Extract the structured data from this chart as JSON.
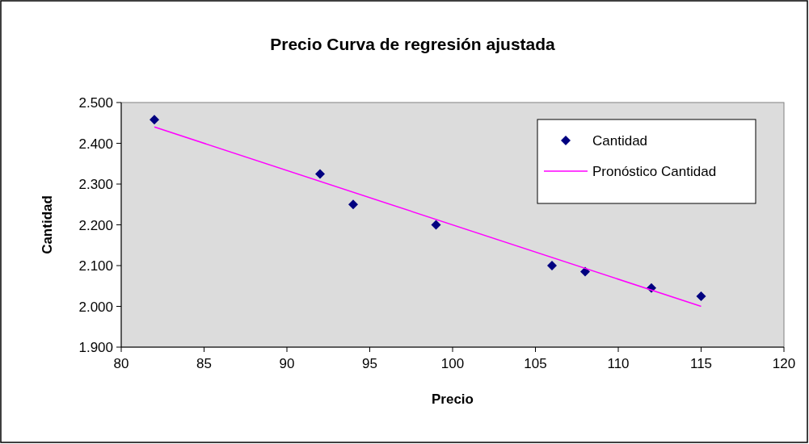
{
  "chart_data": {
    "type": "scatter",
    "title": "Precio Curva de regresión ajustada",
    "xlabel": "Precio",
    "ylabel": "Cantidad",
    "xlim": [
      80,
      120
    ],
    "xticks": [
      80,
      85,
      90,
      95,
      100,
      105,
      110,
      115,
      120
    ],
    "ylim": [
      1.9,
      2.5
    ],
    "yticks": [
      {
        "value": 1.9,
        "label": "1.900"
      },
      {
        "value": 2.0,
        "label": "2.000"
      },
      {
        "value": 2.1,
        "label": "2.100"
      },
      {
        "value": 2.2,
        "label": "2.200"
      },
      {
        "value": 2.3,
        "label": "2.300"
      },
      {
        "value": 2.4,
        "label": "2.400"
      },
      {
        "value": 2.5,
        "label": "2.500"
      }
    ],
    "grid": false,
    "legend": "top right",
    "series": [
      {
        "name": "Cantidad",
        "marker": "diamond",
        "color": "#000080",
        "x": [
          82,
          92,
          94,
          99,
          106,
          108,
          112,
          115
        ],
        "values": [
          2.458,
          2.325,
          2.25,
          2.2,
          2.1,
          2.085,
          2.045,
          2.025
        ]
      },
      {
        "name": "Pronóstico Cantidad",
        "type": "line",
        "marker": "none",
        "color": "#ff00ff",
        "x": [
          82,
          115
        ],
        "values": [
          2.44,
          2.0
        ]
      }
    ]
  }
}
